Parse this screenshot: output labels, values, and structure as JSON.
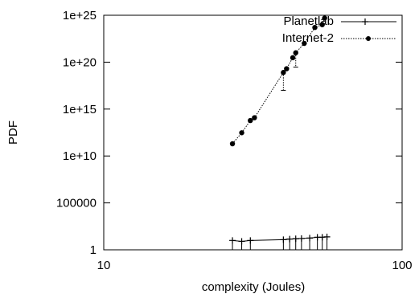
{
  "chart_data": {
    "type": "scatter",
    "title": "",
    "xlabel": "complexity (Joules)",
    "ylabel": "PDF",
    "x_scale": "log",
    "y_scale": "log",
    "xlim": [
      10,
      100
    ],
    "ylim": [
      1,
      1e+25
    ],
    "x_ticks": [
      {
        "value": 10,
        "label": "10"
      },
      {
        "value": 100,
        "label": "100"
      }
    ],
    "y_ticks": [
      {
        "value": 1,
        "label": "1"
      },
      {
        "value": 100000,
        "label": "100000"
      },
      {
        "value": 10000000000.0,
        "label": "1e+10"
      },
      {
        "value": 1000000000000000.0,
        "label": "1e+15"
      },
      {
        "value": 1e+20,
        "label": "1e+20"
      },
      {
        "value": 1e+25,
        "label": "1e+25"
      }
    ],
    "grid": false,
    "legend_position": "top-right",
    "series": [
      {
        "name": "Planetlab",
        "style": "solid",
        "marker": "plus",
        "color": "#000000",
        "points": [
          {
            "x": 27,
            "y": 10,
            "yerr_low": 1
          },
          {
            "x": 29,
            "y": 8,
            "yerr_low": 1
          },
          {
            "x": 31,
            "y": 10,
            "yerr_low": 1
          },
          {
            "x": 40,
            "y": 12,
            "yerr_low": 1
          },
          {
            "x": 42,
            "y": 14,
            "yerr_low": 1
          },
          {
            "x": 44,
            "y": 15,
            "yerr_low": 1
          },
          {
            "x": 46,
            "y": 16,
            "yerr_low": 1
          },
          {
            "x": 49,
            "y": 18,
            "yerr_low": 1
          },
          {
            "x": 52,
            "y": 22,
            "yerr_low": 1
          },
          {
            "x": 54,
            "y": 22,
            "yerr_low": 1
          },
          {
            "x": 56,
            "y": 24,
            "yerr_low": 1
          }
        ]
      },
      {
        "name": "Internet-2",
        "style": "dotted",
        "marker": "dot",
        "color": "#000000",
        "points": [
          {
            "x": 27,
            "y": 200000000000.0
          },
          {
            "x": 29,
            "y": 3000000000000.0
          },
          {
            "x": 31,
            "y": 60000000000000.0
          },
          {
            "x": 32,
            "y": 120000000000000.0
          },
          {
            "x": 40,
            "y": 8e+18,
            "yerr_low": 1e+17
          },
          {
            "x": 41,
            "y": 2e+19
          },
          {
            "x": 43,
            "y": 3e+20
          },
          {
            "x": 44,
            "y": 1e+21,
            "yerr_low": 3e+19
          },
          {
            "x": 47,
            "y": 1e+22
          },
          {
            "x": 51,
            "y": 5e+23
          },
          {
            "x": 54,
            "y": 1e+24
          },
          {
            "x": 55,
            "y": 5e+24
          }
        ]
      }
    ]
  }
}
